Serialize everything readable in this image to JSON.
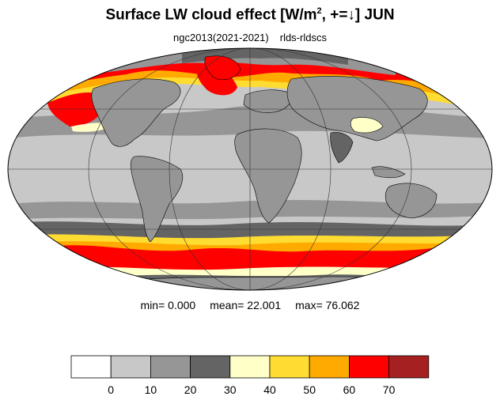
{
  "title": {
    "main": "Surface LW cloud effect [W/m",
    "sup": "2",
    "rest": ", +=↓]  JUN"
  },
  "subtitle": {
    "run": "ngc2013(2021-2021)",
    "variable": "rlds-rldscs"
  },
  "stats": {
    "min_label": "min=",
    "min": "0.000",
    "mean_label": "mean=",
    "mean": "22.001",
    "max_label": "max=",
    "max": "76.062"
  },
  "colorbar": {
    "levels": [
      "0",
      "10",
      "20",
      "30",
      "40",
      "50",
      "60",
      "70"
    ],
    "colors": [
      "#ffffff",
      "#c8c8c8",
      "#969696",
      "#646464",
      "#ffffc8",
      "#ffdc32",
      "#ffaa00",
      "#ff0000",
      "#a52020"
    ]
  },
  "map": {
    "projection": "mollweide",
    "ocean_fill": "#c8c8c8",
    "coastline_color": "#000000"
  }
}
